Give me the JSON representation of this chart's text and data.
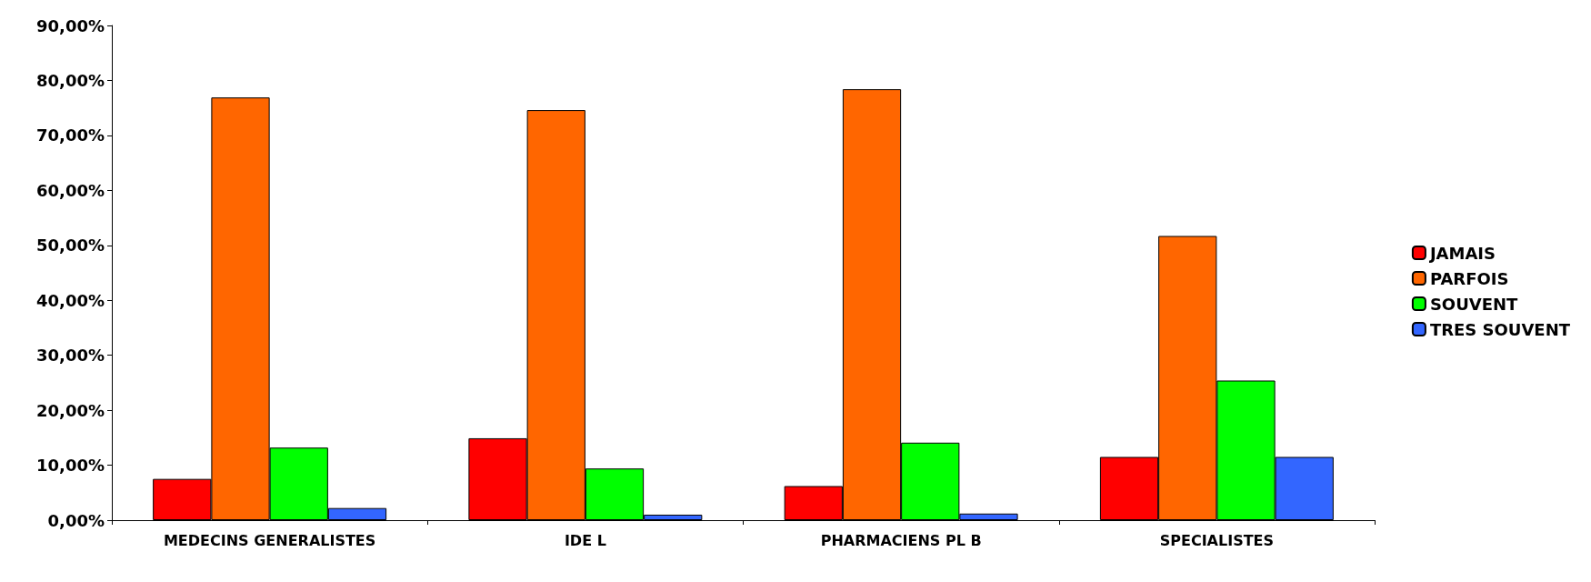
{
  "chart_data": {
    "type": "bar",
    "categories": [
      "MEDECINS GENERALISTES",
      "IDE L",
      "PHARMACIENS PL B",
      "SPECIALISTES"
    ],
    "series": [
      {
        "name": "JAMAIS",
        "color": "#ff0000",
        "values": [
          7.5,
          14.9,
          6.2,
          11.5
        ]
      },
      {
        "name": "PARFOIS",
        "color": "#ff6600",
        "values": [
          76.9,
          74.6,
          78.4,
          51.7
        ]
      },
      {
        "name": "SOUVENT",
        "color": "#00ff00",
        "values": [
          13.2,
          9.4,
          14.1,
          25.4
        ]
      },
      {
        "name": "TRES SOUVENT",
        "color": "#3366ff",
        "values": [
          2.2,
          1.0,
          1.2,
          11.5
        ]
      }
    ],
    "ylim": [
      0,
      90
    ],
    "yticks": [
      {
        "value": 0,
        "label": "0,00%"
      },
      {
        "value": 10,
        "label": "10,00%"
      },
      {
        "value": 20,
        "label": "20,00%"
      },
      {
        "value": 30,
        "label": "30,00%"
      },
      {
        "value": 40,
        "label": "40,00%"
      },
      {
        "value": 50,
        "label": "50,00%"
      },
      {
        "value": 60,
        "label": "60,00%"
      },
      {
        "value": 70,
        "label": "70,00%"
      },
      {
        "value": 80,
        "label": "80,00%"
      },
      {
        "value": 90,
        "label": "90,00%"
      }
    ],
    "grid": false,
    "legend": "right"
  }
}
